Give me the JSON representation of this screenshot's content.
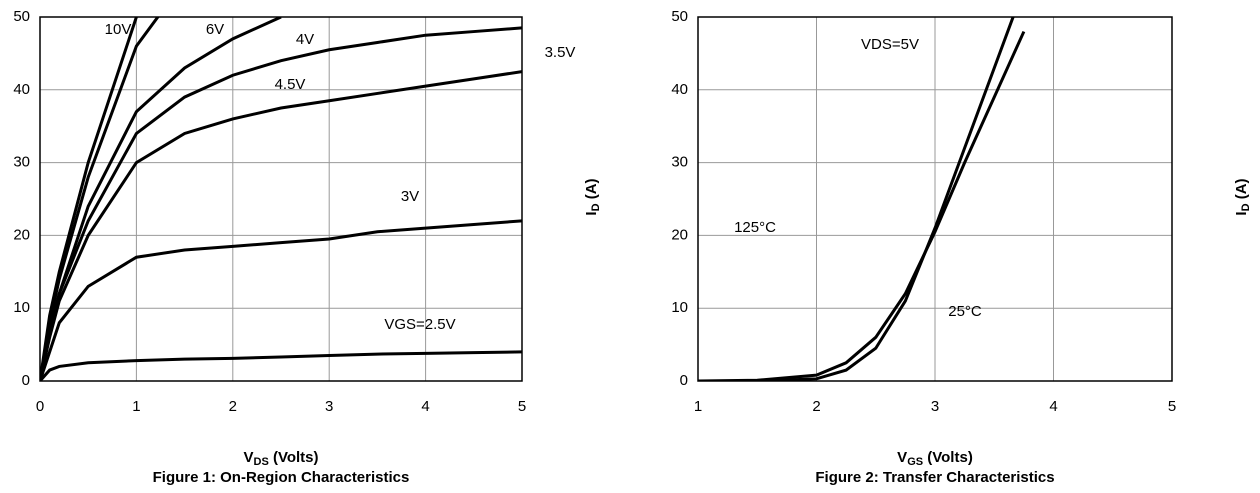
{
  "chart_data": [
    {
      "type": "line",
      "xlabel": [
        "V",
        "DS",
        " (Volts)"
      ],
      "ylabel": [
        "I",
        "D",
        " (A)"
      ],
      "caption": "Figure 1: On-Region Characteristics",
      "x": [
        0,
        0.1,
        0.2,
        0.5,
        1,
        1.5,
        2,
        2.5,
        3,
        3.5,
        4,
        4.5,
        5
      ],
      "xlim": [
        0,
        5
      ],
      "xticks": [
        0,
        1,
        2,
        3,
        4,
        5
      ],
      "ylim": [
        0,
        50
      ],
      "yticks": [
        0,
        10,
        20,
        30,
        40,
        50
      ],
      "series": [
        {
          "name": "10V",
          "color": "#000000",
          "values": [
            0,
            9,
            15,
            30,
            50,
            null,
            null,
            null,
            null,
            null,
            null,
            null,
            null
          ]
        },
        {
          "name": "6V",
          "color": "#000000",
          "values": [
            0,
            8,
            14,
            28,
            46,
            55,
            null,
            null,
            null,
            null,
            null,
            null,
            null
          ]
        },
        {
          "name": "4.5V",
          "color": "#000000",
          "values": [
            0,
            7,
            12,
            24,
            37,
            43,
            47,
            50,
            null,
            null,
            null,
            null,
            null
          ]
        },
        {
          "name": "4V",
          "color": "#000000",
          "values": [
            0,
            7,
            12,
            22,
            34,
            39,
            42,
            44,
            45.5,
            46.5,
            47.5,
            48,
            48.5
          ]
        },
        {
          "name": "3.5V",
          "color": "#000000",
          "values": [
            0,
            6,
            11,
            20,
            30,
            34,
            36,
            37.5,
            38.5,
            39.5,
            40.5,
            41.5,
            42.5
          ]
        },
        {
          "name": "3V",
          "color": "#000000",
          "values": [
            0,
            4,
            8,
            13,
            17,
            18,
            18.5,
            19,
            19.5,
            20.5,
            21,
            21.5,
            22
          ]
        },
        {
          "name": "VGS=2.5V",
          "color": "#000000",
          "values": [
            0,
            1.5,
            2,
            2.5,
            2.8,
            3,
            3.1,
            3.3,
            3.5,
            3.7,
            3.8,
            3.9,
            4
          ]
        }
      ],
      "grid": true
    },
    {
      "type": "line",
      "xlabel": [
        "V",
        "GS",
        " (Volts)"
      ],
      "ylabel": [
        "I",
        "D",
        " (A)"
      ],
      "caption": "Figure 2: Transfer Characteristics",
      "annotation": "VDS=5V",
      "x": [
        1,
        1.5,
        2,
        2.25,
        2.5,
        2.75,
        3,
        3.25,
        3.5,
        3.75
      ],
      "xlim": [
        1,
        5
      ],
      "xticks": [
        1,
        2,
        3,
        4,
        5
      ],
      "ylim": [
        0,
        50
      ],
      "yticks": [
        0,
        10,
        20,
        30,
        40,
        50
      ],
      "series": [
        {
          "name": "125°C",
          "color": "#000000",
          "values": [
            0,
            0.1,
            0.8,
            2.5,
            6,
            12,
            20.5,
            30,
            39,
            48
          ]
        },
        {
          "name": "25°C",
          "color": "#000000",
          "values": [
            0,
            0,
            0.3,
            1.5,
            4.5,
            11,
            21,
            32,
            43,
            54
          ]
        }
      ],
      "grid": true
    }
  ]
}
